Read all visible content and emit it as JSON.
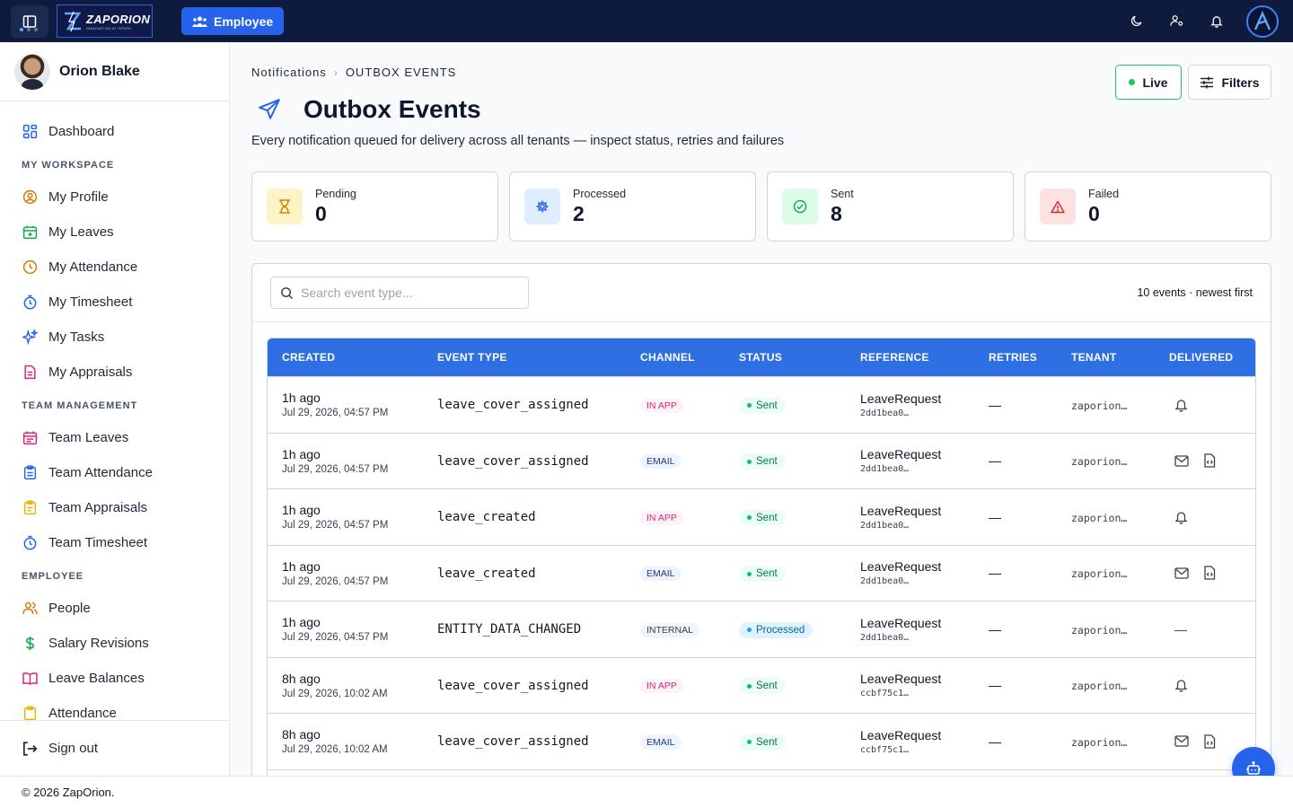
{
  "topbar": {
    "logo_text": "ZAPORION",
    "logo_tagline": "INNOVATION AT SPEED",
    "role_button": "Employee"
  },
  "sidebar": {
    "user_name": "Orion Blake",
    "dashboard": "Dashboard",
    "sections": [
      {
        "title": "MY WORKSPACE",
        "items": [
          "My Profile",
          "My Leaves",
          "My Attendance",
          "My Timesheet",
          "My Tasks",
          "My Appraisals"
        ]
      },
      {
        "title": "TEAM MANAGEMENT",
        "items": [
          "Team Leaves",
          "Team Attendance",
          "Team Appraisals",
          "Team Timesheet"
        ]
      },
      {
        "title": "EMPLOYEE",
        "items": [
          "People",
          "Salary Revisions",
          "Leave Balances",
          "Attendance"
        ]
      }
    ],
    "sign_out": "Sign out"
  },
  "footer": {
    "text": "© 2026 ZapOrion."
  },
  "header": {
    "breadcrumb": [
      "Notifications",
      "OUTBOX EVENTS"
    ],
    "title": "Outbox Events",
    "subtitle": "Every notification queued for delivery across all tenants — inspect status, retries and failures",
    "live_label": "Live",
    "filters_label": "Filters"
  },
  "stats": [
    {
      "label": "Pending",
      "value": "0"
    },
    {
      "label": "Processed",
      "value": "2"
    },
    {
      "label": "Sent",
      "value": "8"
    },
    {
      "label": "Failed",
      "value": "0"
    }
  ],
  "search": {
    "placeholder": "Search event type..."
  },
  "events_count": "10 events · newest first",
  "table": {
    "columns": [
      "CREATED",
      "EVENT TYPE",
      "CHANNEL",
      "STATUS",
      "REFERENCE",
      "RETRIES",
      "TENANT",
      "DELIVERED"
    ],
    "rows": [
      {
        "created": "1h ago",
        "created_full": "Jul 29, 2026, 04:57 PM",
        "event_type": "leave_cover_assigned",
        "channel": "IN APP",
        "status": "Sent",
        "ref": "LeaveRequest",
        "ref_id": "2dd1bea0…",
        "retries": "—",
        "tenant": "zaporion…",
        "delivered": [
          "bell"
        ]
      },
      {
        "created": "1h ago",
        "created_full": "Jul 29, 2026, 04:57 PM",
        "event_type": "leave_cover_assigned",
        "channel": "EMAIL",
        "status": "Sent",
        "ref": "LeaveRequest",
        "ref_id": "2dd1bea0…",
        "retries": "—",
        "tenant": "zaporion…",
        "delivered": [
          "mail",
          "doc"
        ]
      },
      {
        "created": "1h ago",
        "created_full": "Jul 29, 2026, 04:57 PM",
        "event_type": "leave_created",
        "channel": "IN APP",
        "status": "Sent",
        "ref": "LeaveRequest",
        "ref_id": "2dd1bea0…",
        "retries": "—",
        "tenant": "zaporion…",
        "delivered": [
          "bell"
        ]
      },
      {
        "created": "1h ago",
        "created_full": "Jul 29, 2026, 04:57 PM",
        "event_type": "leave_created",
        "channel": "EMAIL",
        "status": "Sent",
        "ref": "LeaveRequest",
        "ref_id": "2dd1bea0…",
        "retries": "—",
        "tenant": "zaporion…",
        "delivered": [
          "mail",
          "doc"
        ]
      },
      {
        "created": "1h ago",
        "created_full": "Jul 29, 2026, 04:57 PM",
        "event_type": "ENTITY_DATA_CHANGED",
        "channel": "INTERNAL",
        "status": "Processed",
        "ref": "LeaveRequest",
        "ref_id": "2dd1bea0…",
        "retries": "—",
        "tenant": "zaporion…",
        "delivered": [
          "dash"
        ]
      },
      {
        "created": "8h ago",
        "created_full": "Jul 29, 2026, 10:02 AM",
        "event_type": "leave_cover_assigned",
        "channel": "IN APP",
        "status": "Sent",
        "ref": "LeaveRequest",
        "ref_id": "ccbf75c1…",
        "retries": "—",
        "tenant": "zaporion…",
        "delivered": [
          "bell"
        ]
      },
      {
        "created": "8h ago",
        "created_full": "Jul 29, 2026, 10:02 AM",
        "event_type": "leave_cover_assigned",
        "channel": "EMAIL",
        "status": "Sent",
        "ref": "LeaveRequest",
        "ref_id": "ccbf75c1…",
        "retries": "—",
        "tenant": "zaporion…",
        "delivered": [
          "mail",
          "doc"
        ]
      },
      {
        "created": "",
        "created_full": "",
        "event_type": "",
        "channel": "",
        "status": "",
        "ref": "",
        "ref_id": "",
        "retries": "",
        "tenant": "",
        "delivered": []
      }
    ]
  },
  "colors": {
    "topbar": "#0f1b3d",
    "accent": "#2563eb",
    "table_header": "#2f6fe4",
    "live": "#22c55e"
  }
}
